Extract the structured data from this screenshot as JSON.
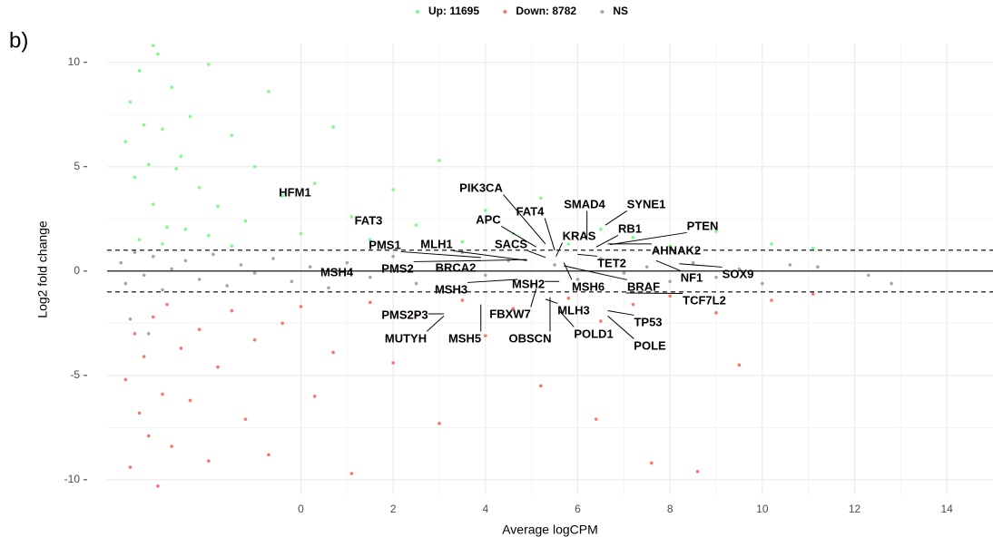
{
  "chart_data": {
    "type": "scatter",
    "panel_label": "b)",
    "x_label": "Average logCPM",
    "y_label": "Log2 fold change",
    "legend_position": "top",
    "grid": true,
    "xlim": [
      -4.2,
      15
    ],
    "ylim": [
      -10.7,
      10.9
    ],
    "xticks": [
      0,
      2,
      4,
      6,
      8,
      10,
      12,
      14
    ],
    "yticks": [
      -10,
      -5,
      0,
      5,
      10
    ],
    "hline_solid": 0,
    "hlines_dashed": [
      1,
      -1
    ],
    "series": [
      {
        "name": "Up: 11695",
        "color": "#80f98d",
        "x": [
          -3.8,
          -3.7,
          -3.6,
          -3.5,
          -3.4,
          -3.3,
          -3.2,
          -3.1,
          -3.0,
          -2.9,
          -2.8,
          -2.6,
          -2.4,
          -2.2,
          -2.0,
          -1.8,
          -1.5,
          -1.2,
          -1.0,
          -0.7,
          -0.4,
          0.0,
          0.3,
          0.7,
          1.1,
          1.5,
          2.0,
          2.5,
          3.0,
          3.5,
          4.0,
          4.6,
          5.2,
          5.8,
          6.5,
          7.2,
          8.0,
          9.0,
          10.2,
          11.1,
          -3.5,
          -3.0,
          -2.5,
          -2.0,
          -1.5,
          -3.2,
          -2.7
        ],
        "values": [
          6.2,
          8.1,
          4.5,
          9.6,
          7.0,
          5.1,
          3.2,
          10.4,
          6.8,
          2.1,
          8.8,
          5.5,
          7.4,
          4.0,
          9.9,
          3.1,
          6.5,
          2.4,
          5.0,
          8.6,
          3.6,
          1.8,
          4.2,
          6.9,
          2.6,
          1.5,
          3.9,
          2.2,
          5.3,
          1.4,
          2.9,
          1.8,
          3.5,
          1.3,
          2.0,
          1.6,
          1.2,
          1.9,
          1.3,
          1.1,
          1.5,
          1.3,
          2.0,
          1.7,
          1.2,
          10.8,
          4.9
        ]
      },
      {
        "name": "Down: 8782",
        "color": "#f8766d",
        "x": [
          -3.8,
          -3.7,
          -3.6,
          -3.5,
          -3.4,
          -3.3,
          -3.2,
          -3.1,
          -3.0,
          -2.9,
          -2.8,
          -2.6,
          -2.4,
          -2.2,
          -2.0,
          -1.8,
          -1.5,
          -1.2,
          -1.0,
          -0.7,
          -0.4,
          0.0,
          0.3,
          0.7,
          1.1,
          1.5,
          2.0,
          2.5,
          3.0,
          3.5,
          4.0,
          4.6,
          5.2,
          5.8,
          6.5,
          7.2,
          8.0,
          9.0,
          10.2,
          11.1,
          6.4,
          7.6,
          8.6,
          9.5
        ],
        "values": [
          -5.2,
          -9.4,
          -3.0,
          -6.8,
          -4.1,
          -7.9,
          -2.2,
          -10.3,
          -5.9,
          -1.6,
          -8.4,
          -3.7,
          -6.2,
          -2.8,
          -9.1,
          -4.6,
          -1.9,
          -7.1,
          -3.3,
          -8.8,
          -2.5,
          -1.7,
          -6.0,
          -3.9,
          -9.7,
          -1.5,
          -4.4,
          -2.1,
          -7.3,
          -1.4,
          -3.1,
          -1.8,
          -5.5,
          -1.3,
          -2.4,
          -1.6,
          -1.2,
          -2.0,
          -1.4,
          -1.1,
          -7.1,
          -9.2,
          -9.6,
          -4.5
        ]
      },
      {
        "name": "NS",
        "color": "#a6a6a6",
        "x": [
          -3.9,
          -3.8,
          -3.6,
          -3.4,
          -3.2,
          -3.0,
          -2.8,
          -2.5,
          -2.2,
          -1.9,
          -1.6,
          -1.3,
          -1.0,
          -0.6,
          -0.2,
          0.2,
          0.6,
          1.0,
          1.5,
          2.0,
          2.5,
          3.0,
          3.5,
          4.0,
          4.5,
          5.0,
          5.5,
          6.0,
          6.5,
          7.0,
          7.5,
          8.0,
          8.5,
          9.0,
          9.5,
          10.0,
          10.6,
          11.2,
          12.3,
          12.8,
          -3.7,
          -3.3
        ],
        "values": [
          0.4,
          -0.6,
          0.9,
          -0.2,
          0.7,
          -0.9,
          0.1,
          0.5,
          -0.4,
          0.8,
          -0.7,
          0.3,
          -0.1,
          0.6,
          -0.5,
          0.2,
          -0.8,
          0.4,
          -0.3,
          0.7,
          -0.6,
          0.1,
          0.9,
          -0.2,
          0.5,
          -0.7,
          0.3,
          -0.4,
          0.6,
          -0.1,
          0.2,
          -0.5,
          0.4,
          -0.3,
          0.1,
          -0.6,
          0.3,
          0.2,
          -0.2,
          -0.6,
          -2.3,
          -3.0
        ]
      }
    ],
    "annotations": [
      {
        "text": "HFM1",
        "x": -0.1,
        "y": 3.86
      },
      {
        "text": "FAT3",
        "x": 1.49,
        "y": 2.5
      },
      {
        "text": "PIK3CA",
        "x": 5.3,
        "y": 1.3
      },
      {
        "text": "APC",
        "x": 5.1,
        "y": 1.15
      },
      {
        "text": "FAT4",
        "x": 5.5,
        "y": 1.0
      },
      {
        "text": "SMAD4",
        "x": 6.2,
        "y": 1.6
      },
      {
        "text": "SYNE1",
        "x": 6.6,
        "y": 2.2
      },
      {
        "text": "RB1",
        "x": 6.4,
        "y": 1.15
      },
      {
        "text": "KRAS",
        "x": 5.53,
        "y": 0.7
      },
      {
        "text": "PTEN",
        "x": 6.7,
        "y": 1.27
      },
      {
        "text": "AHNAK2",
        "x": 6.65,
        "y": 1.3
      },
      {
        "text": "PMS1",
        "x": 3.9,
        "y": 0.65
      },
      {
        "text": "MLH1",
        "x": 4.9,
        "y": 0.5
      },
      {
        "text": "SACS",
        "x": 5.3,
        "y": 0.65
      },
      {
        "text": "TET2",
        "x": 6.0,
        "y": 0.8
      },
      {
        "text": "MSH4",
        "x": 0.8,
        "y": 0
      },
      {
        "text": "PMS2",
        "x": 3.9,
        "y": 0.5
      },
      {
        "text": "BRCA2",
        "x": 4.9,
        "y": 0.55
      },
      {
        "text": "NF1",
        "x": 7.7,
        "y": 0.5
      },
      {
        "text": "SOX9",
        "x": 8.2,
        "y": 0.35
      },
      {
        "text": "BRAF",
        "x": 5.7,
        "y": 0.25
      },
      {
        "text": "MSH3",
        "x": 4.7,
        "y": -0.4
      },
      {
        "text": "MSH2",
        "x": 5.6,
        "y": -0.5
      },
      {
        "text": "MSH6",
        "x": 5.7,
        "y": 0.4
      },
      {
        "text": "TCF7L2",
        "x": 7.05,
        "y": -1.05
      },
      {
        "text": "PMS2P3",
        "x": 3.1,
        "y": -2.05
      },
      {
        "text": "MLH3",
        "x": 5.3,
        "y": -1.35
      },
      {
        "text": "TP53",
        "x": 6.65,
        "y": -1.9
      },
      {
        "text": "FBXW7",
        "x": 5.1,
        "y": -0.85
      },
      {
        "text": "MUTYH",
        "x": 3.1,
        "y": -2.15
      },
      {
        "text": "MSH5",
        "x": 3.9,
        "y": -1.6
      },
      {
        "text": "OBSCN",
        "x": 5.4,
        "y": -1.25
      },
      {
        "text": "POLD1",
        "x": 5.6,
        "y": -1.9
      },
      {
        "text": "POLE",
        "x": 6.65,
        "y": -2.15
      }
    ]
  }
}
